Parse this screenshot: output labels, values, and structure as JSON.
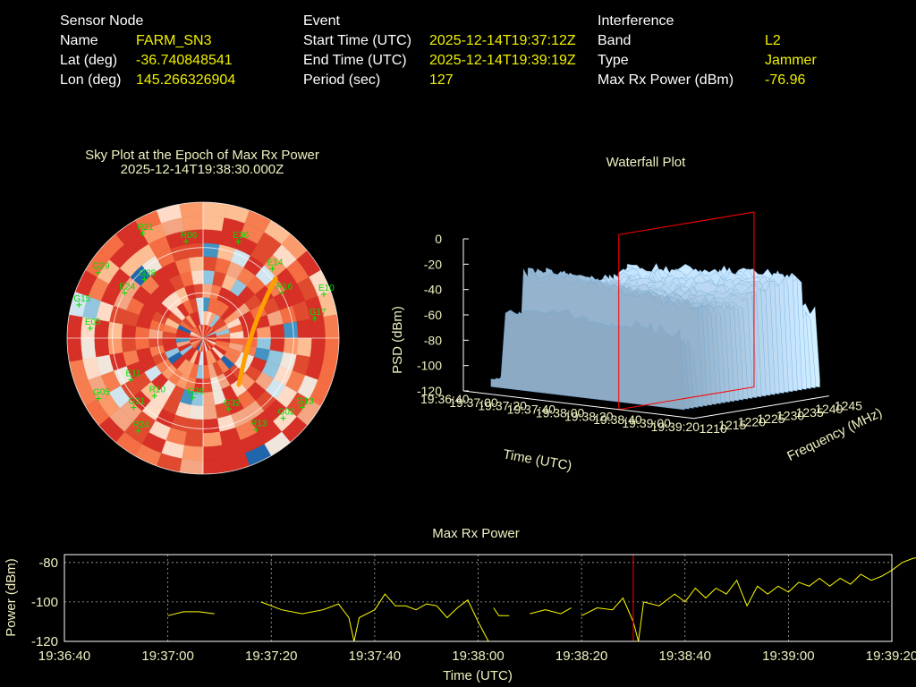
{
  "sensor": {
    "header": "Sensor Node",
    "name_label": "Name",
    "name": "FARM_SN3",
    "lat_label": "Lat (deg)",
    "lat": "-36.740848541",
    "lon_label": "Lon (deg)",
    "lon": "145.266326904"
  },
  "event": {
    "header": "Event",
    "start_label": "Start Time (UTC)",
    "start": "2025-12-14T19:37:12Z",
    "end_label": "End Time (UTC)",
    "end": "2025-12-14T19:39:19Z",
    "period_label": "Period (sec)",
    "period": "127"
  },
  "interference": {
    "header": "Interference",
    "band_label": "Band",
    "band": "L2",
    "type_label": "Type",
    "type": "Jammer",
    "maxrx_label": "Max Rx Power (dBm)",
    "maxrx": "-76.96"
  },
  "colors": {
    "label": "#ffffff",
    "value": "#f0f000",
    "title": "#f0f0c0",
    "satellite": "#00e000",
    "marker": "#ff0000",
    "trace": "#ffff00"
  },
  "chart_data": [
    {
      "type": "heatmap",
      "subtype": "polar-sky-plot",
      "title": "Sky Plot at the Epoch of Max Rx Power",
      "subtitle": "2025-12-14T19:38:30.000Z",
      "satellites": [
        {
          "id": "R21",
          "az": 330,
          "el": 10
        },
        {
          "id": "R06",
          "az": 350,
          "el": 25
        },
        {
          "id": "G29",
          "az": 302,
          "el": 8
        },
        {
          "id": "G28",
          "az": 315,
          "el": 35
        },
        {
          "id": "E36",
          "az": 20,
          "el": 22
        },
        {
          "id": "E14",
          "az": 45,
          "el": 25
        },
        {
          "id": "R16",
          "az": 60,
          "el": 30
        },
        {
          "id": "E10",
          "az": 70,
          "el": 5
        },
        {
          "id": "G17",
          "az": 80,
          "el": 15
        },
        {
          "id": "E24",
          "az": 300,
          "el": 30
        },
        {
          "id": "E05",
          "az": 275,
          "el": 15
        },
        {
          "id": "G15",
          "az": 285,
          "el": 5
        },
        {
          "id": "E11",
          "az": 240,
          "el": 35
        },
        {
          "id": "R10",
          "az": 220,
          "el": 40
        },
        {
          "id": "G21",
          "az": 225,
          "el": 25
        },
        {
          "id": "G05",
          "az": 240,
          "el": 10
        },
        {
          "id": "R24",
          "az": 215,
          "el": 15
        },
        {
          "id": "G32",
          "az": 160,
          "el": 40
        },
        {
          "id": "R13",
          "az": 150,
          "el": 20
        },
        {
          "id": "G13",
          "az": 125,
          "el": 10
        },
        {
          "id": "G02",
          "az": 135,
          "el": 15
        },
        {
          "id": "G26",
          "az": 190,
          "el": 50
        }
      ]
    },
    {
      "type": "area",
      "subtype": "3d-waterfall",
      "title": "Waterfall Plot",
      "xlabel": "Time (UTC)",
      "ylabel": "Frequency (MHz)",
      "zlabel": "PSD (dBm)",
      "time_ticks": [
        "19:36:40",
        "19:37:00",
        "19:37:20",
        "19:37:40",
        "19:38:00",
        "19:38:20",
        "19:38:40",
        "19:39:00",
        "19:39:20"
      ],
      "freq_ticks": [
        "1210",
        "1215",
        "1220",
        "1225",
        "1230",
        "1235",
        "1240",
        "1245"
      ],
      "psd_ticks": [
        "0",
        "-20",
        "-40",
        "-60",
        "-80",
        "-100",
        "-120"
      ],
      "zlim": [
        -120,
        0
      ],
      "marker_time": "19:38:30"
    },
    {
      "type": "line",
      "title": "Max Rx Power",
      "xlabel": "Time (UTC)",
      "ylabel": "Power (dBm)",
      "x_ticks": [
        "19:36:40",
        "19:37:00",
        "19:37:20",
        "19:37:40",
        "19:38:00",
        "19:38:20",
        "19:38:40",
        "19:39:00",
        "19:39:20"
      ],
      "y_ticks": [
        "-80",
        "-100",
        "-120"
      ],
      "ylim": [
        -120,
        -76
      ],
      "grid": true,
      "marker_t": 110,
      "segments": [
        [
          [
            20,
            -107
          ],
          [
            23,
            -105
          ],
          [
            26,
            -105
          ],
          [
            29,
            -106
          ]
        ],
        [
          [
            38,
            -100
          ],
          [
            42,
            -104
          ],
          [
            46,
            -106
          ],
          [
            50,
            -104
          ],
          [
            53,
            -101
          ]
        ],
        [
          [
            53,
            -101
          ],
          [
            55,
            -108
          ],
          [
            56,
            -120
          ],
          [
            57,
            -108
          ],
          [
            60,
            -104
          ]
        ],
        [
          [
            60,
            -104
          ],
          [
            62,
            -96
          ],
          [
            64,
            -102
          ],
          [
            66,
            -102
          ],
          [
            68,
            -104
          ],
          [
            70,
            -101
          ],
          [
            72,
            -102
          ]
        ],
        [
          [
            72,
            -102
          ],
          [
            74,
            -108
          ],
          [
            76,
            -103
          ],
          [
            78,
            -99
          ],
          [
            80,
            -110
          ],
          [
            82,
            -120
          ]
        ],
        [
          [
            83,
            -103
          ],
          [
            84,
            -107
          ],
          [
            86,
            -107
          ]
        ],
        [
          [
            90,
            -106
          ],
          [
            93,
            -104
          ],
          [
            96,
            -106
          ],
          [
            98,
            -103
          ]
        ],
        [
          [
            100,
            -107
          ],
          [
            103,
            -103
          ],
          [
            106,
            -104
          ],
          [
            108,
            -98
          ],
          [
            110,
            -110
          ],
          [
            111,
            -120
          ],
          [
            112,
            -100
          ]
        ],
        [
          [
            112,
            -100
          ],
          [
            115,
            -102
          ],
          [
            118,
            -96
          ],
          [
            120,
            -100
          ],
          [
            122,
            -93
          ],
          [
            124,
            -98
          ],
          [
            126,
            -93
          ]
        ],
        [
          [
            126,
            -93
          ],
          [
            128,
            -96
          ],
          [
            130,
            -89
          ],
          [
            132,
            -102
          ],
          [
            134,
            -92
          ],
          [
            136,
            -96
          ],
          [
            138,
            -92
          ],
          [
            140,
            -95
          ],
          [
            142,
            -90
          ],
          [
            144,
            -92
          ],
          [
            146,
            -88
          ],
          [
            148,
            -92
          ],
          [
            150,
            -88
          ],
          [
            152,
            -91
          ],
          [
            154,
            -86
          ],
          [
            156,
            -89
          ],
          [
            158,
            -87
          ],
          [
            160,
            -84
          ]
        ],
        [
          [
            160,
            -84
          ],
          [
            162,
            -80
          ],
          [
            164,
            -78
          ],
          [
            166,
            -77
          ],
          [
            168,
            -78
          ],
          [
            170,
            -81
          ],
          [
            172,
            -84
          ],
          [
            174,
            -86
          ],
          [
            176,
            -90
          ],
          [
            178,
            -88
          ],
          [
            180,
            -86
          ],
          [
            182,
            -92
          ],
          [
            184,
            -88
          ],
          [
            186,
            -89
          ],
          [
            188,
            -94
          ],
          [
            190,
            -92
          ],
          [
            192,
            -90
          ],
          [
            194,
            -94
          ],
          [
            196,
            -90
          ],
          [
            198,
            -87
          ],
          [
            200,
            -88
          ],
          [
            202,
            -92
          ],
          [
            204,
            -94
          ],
          [
            206,
            -102
          ],
          [
            208,
            -94
          ],
          [
            210,
            -97
          ],
          [
            212,
            -96
          ],
          [
            214,
            -93
          ],
          [
            216,
            -96
          ],
          [
            218,
            -100
          ],
          [
            220,
            -98
          ],
          [
            222,
            -96
          ]
        ],
        [
          [
            224,
            -99
          ],
          [
            226,
            -102
          ],
          [
            228,
            -101
          ]
        ],
        [
          [
            232,
            -99
          ],
          [
            234,
            -102
          ],
          [
            236,
            -109
          ]
        ]
      ]
    }
  ]
}
